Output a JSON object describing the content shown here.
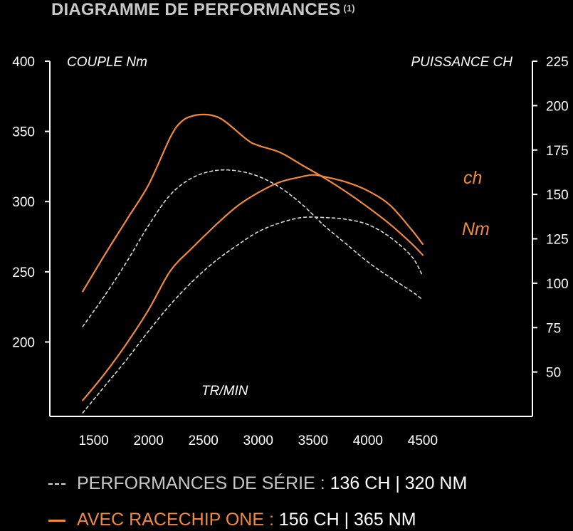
{
  "title": "DIAGRAMME DE PERFORMANCES",
  "title_note": "(1)",
  "legend": {
    "stock_label": "PERFORMANCES DE SÉRIE :",
    "stock_value": "136 CH | 320 NM",
    "racechip_label": "AVEC RACECHIP ONE :",
    "racechip_value": "156 CH | 365 NM"
  },
  "colors": {
    "stock": "#d9d9d9",
    "racechip": "#f0883e",
    "axis": "#ffffff",
    "text": "#ffffff"
  },
  "chart_data": {
    "type": "line",
    "title": "DIAGRAMME DE PERFORMANCES",
    "xlabel": "TR/MIN",
    "ylabel_left": "COUPLE Nm",
    "ylabel_right": "PUISSANCE CH",
    "xlim": [
      1100,
      5500
    ],
    "ylim_left": [
      147,
      400
    ],
    "ylim_right": [
      25,
      225
    ],
    "x_ticks": [
      1500,
      2000,
      2500,
      3000,
      3500,
      4000,
      4500
    ],
    "y_ticks_left": [
      200,
      250,
      300,
      350,
      400
    ],
    "y_ticks_right": [
      50,
      75,
      100,
      125,
      150,
      175,
      200,
      225
    ],
    "grid": false,
    "series": [
      {
        "name": "PERFORMANCES DE SÉRIE",
        "style": "dashed",
        "axis": "left",
        "label": "",
        "x": [
          1400,
          1600,
          1800,
          2000,
          2200,
          2400,
          2600,
          2800,
          3000,
          3200,
          3400,
          3600,
          3800,
          4000,
          4200,
          4400,
          4500
        ],
        "y": [
          211,
          233,
          257,
          283,
          305,
          317,
          322,
          322,
          318,
          310,
          298,
          283,
          270,
          257,
          246,
          236,
          230
        ]
      },
      {
        "name": "PERFORMANCES DE SÉRIE",
        "style": "dashed",
        "axis": "right",
        "label": "",
        "x": [
          1400,
          1600,
          1800,
          2000,
          2200,
          2400,
          2600,
          2800,
          3000,
          3200,
          3400,
          3600,
          3800,
          4000,
          4200,
          4400,
          4500
        ],
        "y": [
          27,
          42,
          57,
          73,
          88,
          101,
          112,
          121,
          129,
          134,
          137,
          137,
          136,
          133,
          126,
          115,
          104
        ]
      },
      {
        "name": "AVEC RACECHIP ONE",
        "style": "solid",
        "axis": "left",
        "label": "Nm",
        "x": [
          1400,
          1600,
          1800,
          2000,
          2200,
          2300,
          2400,
          2500,
          2600,
          2700,
          2900,
          3000,
          3200,
          3400,
          3600,
          3800,
          4000,
          4200,
          4400,
          4500
        ],
        "y": [
          236,
          262,
          287,
          312,
          346,
          357,
          361,
          362,
          361,
          357,
          344,
          340,
          335,
          326,
          317,
          307,
          296,
          284,
          270,
          262
        ]
      },
      {
        "name": "AVEC RACECHIP ONE",
        "style": "solid",
        "axis": "right",
        "label": "ch",
        "x": [
          1400,
          1600,
          1800,
          2000,
          2200,
          2400,
          2600,
          2800,
          3000,
          3200,
          3400,
          3500,
          3600,
          3800,
          4000,
          4200,
          4400,
          4500
        ],
        "y": [
          34,
          49,
          66,
          85,
          107,
          120,
          132,
          143,
          151,
          157,
          160,
          161,
          160,
          157,
          152,
          144,
          130,
          122
        ]
      }
    ]
  }
}
